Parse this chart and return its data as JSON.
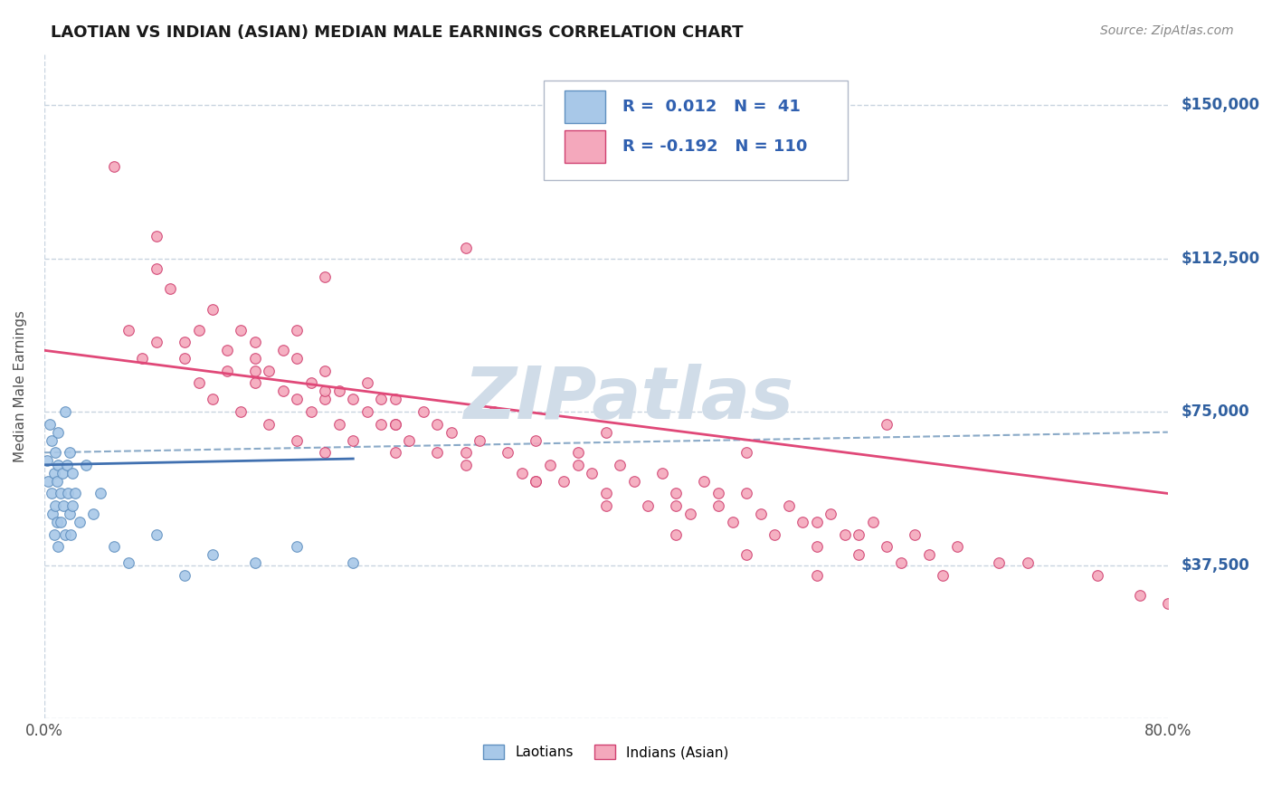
{
  "title": "LAOTIAN VS INDIAN (ASIAN) MEDIAN MALE EARNINGS CORRELATION CHART",
  "source_text": "Source: ZipAtlas.com",
  "ylabel": "Median Male Earnings",
  "xlim": [
    0.0,
    0.8
  ],
  "ylim": [
    0,
    162500
  ],
  "yticks": [
    0,
    37500,
    75000,
    112500,
    150000
  ],
  "ytick_labels": [
    "",
    "$37,500",
    "$75,000",
    "$112,500",
    "$150,000"
  ],
  "xtick_labels": [
    "0.0%",
    "80.0%"
  ],
  "blue_color": "#A8C8E8",
  "pink_color": "#F4A8BC",
  "blue_edge_color": "#6090C0",
  "pink_edge_color": "#D04070",
  "blue_line_color": "#4070B0",
  "pink_line_color": "#E04878",
  "dash_line_color": "#8AAAC8",
  "watermark": "ZIPatlas",
  "watermark_color": "#D0DCE8",
  "background_color": "#FFFFFF",
  "grid_color": "#C8D4E0",
  "laotian_x": [
    0.002,
    0.003,
    0.004,
    0.005,
    0.005,
    0.006,
    0.007,
    0.007,
    0.008,
    0.008,
    0.009,
    0.009,
    0.01,
    0.01,
    0.01,
    0.012,
    0.012,
    0.013,
    0.014,
    0.015,
    0.015,
    0.016,
    0.017,
    0.018,
    0.018,
    0.019,
    0.02,
    0.02,
    0.022,
    0.025,
    0.03,
    0.035,
    0.04,
    0.05,
    0.06,
    0.08,
    0.1,
    0.12,
    0.15,
    0.18,
    0.22
  ],
  "laotian_y": [
    63000,
    58000,
    72000,
    55000,
    68000,
    50000,
    60000,
    45000,
    65000,
    52000,
    48000,
    58000,
    62000,
    42000,
    70000,
    55000,
    48000,
    60000,
    52000,
    75000,
    45000,
    62000,
    55000,
    50000,
    65000,
    45000,
    60000,
    52000,
    55000,
    48000,
    62000,
    50000,
    55000,
    42000,
    38000,
    45000,
    35000,
    40000,
    38000,
    42000,
    38000
  ],
  "indian_x": [
    0.05,
    0.06,
    0.07,
    0.08,
    0.08,
    0.09,
    0.1,
    0.11,
    0.11,
    0.12,
    0.12,
    0.13,
    0.13,
    0.14,
    0.14,
    0.15,
    0.15,
    0.15,
    0.16,
    0.16,
    0.17,
    0.17,
    0.18,
    0.18,
    0.18,
    0.19,
    0.19,
    0.2,
    0.2,
    0.2,
    0.21,
    0.21,
    0.22,
    0.22,
    0.23,
    0.23,
    0.24,
    0.24,
    0.25,
    0.25,
    0.26,
    0.27,
    0.28,
    0.29,
    0.3,
    0.31,
    0.32,
    0.33,
    0.34,
    0.35,
    0.36,
    0.37,
    0.38,
    0.39,
    0.4,
    0.41,
    0.42,
    0.43,
    0.44,
    0.45,
    0.46,
    0.47,
    0.48,
    0.49,
    0.5,
    0.51,
    0.52,
    0.53,
    0.54,
    0.55,
    0.56,
    0.57,
    0.58,
    0.59,
    0.6,
    0.61,
    0.62,
    0.63,
    0.64,
    0.65,
    0.3,
    0.2,
    0.25,
    0.35,
    0.4,
    0.45,
    0.5,
    0.55,
    0.6,
    0.7,
    0.1,
    0.15,
    0.2,
    0.25,
    0.3,
    0.35,
    0.4,
    0.45,
    0.5,
    0.55,
    0.08,
    0.18,
    0.28,
    0.38,
    0.48,
    0.58,
    0.68,
    0.75,
    0.78,
    0.8
  ],
  "indian_y": [
    135000,
    95000,
    88000,
    110000,
    92000,
    105000,
    88000,
    95000,
    82000,
    100000,
    78000,
    90000,
    85000,
    95000,
    75000,
    88000,
    82000,
    92000,
    85000,
    72000,
    80000,
    90000,
    78000,
    88000,
    68000,
    82000,
    75000,
    85000,
    78000,
    65000,
    80000,
    72000,
    78000,
    68000,
    75000,
    82000,
    72000,
    78000,
    65000,
    72000,
    68000,
    75000,
    65000,
    70000,
    62000,
    68000,
    75000,
    65000,
    60000,
    68000,
    62000,
    58000,
    65000,
    60000,
    55000,
    62000,
    58000,
    52000,
    60000,
    55000,
    50000,
    58000,
    52000,
    48000,
    55000,
    50000,
    45000,
    52000,
    48000,
    42000,
    50000,
    45000,
    40000,
    48000,
    42000,
    38000,
    45000,
    40000,
    35000,
    42000,
    115000,
    108000,
    78000,
    58000,
    70000,
    52000,
    65000,
    48000,
    72000,
    38000,
    92000,
    85000,
    80000,
    72000,
    65000,
    58000,
    52000,
    45000,
    40000,
    35000,
    118000,
    95000,
    72000,
    62000,
    55000,
    45000,
    38000,
    35000,
    30000,
    28000
  ],
  "laotian_trend": [
    0.0,
    0.22
  ],
  "laotian_trend_y": [
    62000,
    63500
  ],
  "indian_trend": [
    0.0,
    0.8
  ],
  "indian_trend_y": [
    90000,
    55000
  ],
  "dash_trend": [
    0.0,
    0.8
  ],
  "dash_trend_y": [
    65000,
    70000
  ]
}
